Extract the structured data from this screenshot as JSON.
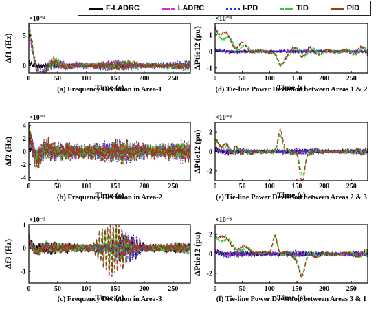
{
  "legend": [
    {
      "name": "F-LADRC",
      "color": "#000000",
      "dash": ""
    },
    {
      "name": "LADRC",
      "color": "#cc33cc",
      "dash": "6,3"
    },
    {
      "name": "I-PD",
      "color": "#1f2fd6",
      "dash": "1.5,2"
    },
    {
      "name": "TID",
      "color": "#33cc33",
      "dash": "6,3"
    },
    {
      "name": "PID",
      "color": "#9a3a1a",
      "dash": "6,3"
    }
  ],
  "chart_data": [
    {
      "id": "a",
      "type": "line",
      "caption": "(a) Frequency Deviation in Area-1",
      "xlabel": "Time (s)",
      "ylabel": "Δf1 (Hz)",
      "scale_label": "×10⁻⁴",
      "xlim": [
        0,
        280
      ],
      "ylim": [
        -1.2,
        7
      ],
      "xticks": [
        0,
        50,
        100,
        150,
        200,
        250
      ],
      "yticks": [
        0,
        5
      ],
      "ytick_labels": [
        "0",
        "5"
      ],
      "series": [
        {
          "name": "F-LADRC",
          "peak": 0.5,
          "amp": 0.5,
          "decay": 10,
          "freq": 0.9,
          "noise": 0.35,
          "seed": 1
        },
        {
          "name": "LADRC",
          "peak": 5.0,
          "amp": 1.0,
          "decay": 14,
          "freq": 0.9,
          "noise": 0.8,
          "seed": 2
        },
        {
          "name": "I-PD",
          "peak": 5.3,
          "amp": 1.2,
          "decay": 16,
          "freq": 0.9,
          "noise": 1.0,
          "seed": 3
        },
        {
          "name": "TID",
          "peak": 6.3,
          "amp": 1.1,
          "decay": 20,
          "freq": 0.9,
          "noise": 0.8,
          "seed": 4
        },
        {
          "name": "PID",
          "peak": 6.6,
          "amp": 1.0,
          "decay": 22,
          "freq": 0.9,
          "noise": 0.8,
          "seed": 5
        }
      ]
    },
    {
      "id": "b",
      "type": "line",
      "caption": "(b) Frequency Deviation in Area-2",
      "xlabel": "Time (s)",
      "ylabel": "Δf2 (Hz)",
      "scale_label": "×10⁻⁴",
      "xlim": [
        0,
        280
      ],
      "ylim": [
        -4.5,
        4.5
      ],
      "xticks": [
        0,
        50,
        100,
        150,
        200,
        250
      ],
      "yticks": [
        -4,
        -2,
        0,
        2,
        4
      ],
      "ytick_labels": [
        "-4",
        "-2",
        "0",
        "2",
        "4"
      ],
      "series": [
        {
          "name": "F-LADRC",
          "peak": 0.5,
          "amp": 0.4,
          "decay": 10,
          "freq": 1.3,
          "noise": 0.3,
          "seed": 11
        },
        {
          "name": "LADRC",
          "peak": 2.0,
          "amp": 1.6,
          "decay": 20,
          "freq": 1.3,
          "noise": 1.7,
          "seed": 12
        },
        {
          "name": "I-PD",
          "peak": 2.5,
          "amp": 2.0,
          "decay": 20,
          "freq": 1.3,
          "noise": 2.2,
          "seed": 13
        },
        {
          "name": "TID",
          "peak": 2.8,
          "amp": 1.8,
          "decay": 20,
          "freq": 1.3,
          "noise": 1.8,
          "seed": 14
        },
        {
          "name": "PID",
          "peak": 3.0,
          "amp": 2.1,
          "decay": 20,
          "freq": 1.3,
          "noise": 2.2,
          "seed": 15
        }
      ]
    },
    {
      "id": "c",
      "type": "line",
      "caption": "(c) Frequency Deviation in Area-3",
      "xlabel": "Time (s)",
      "ylabel": "Δf3 (Hz)",
      "scale_label": "×10⁻³",
      "xlim": [
        0,
        280
      ],
      "ylim": [
        -1.5,
        1
      ],
      "xticks": [
        0,
        50,
        100,
        150,
        200,
        250
      ],
      "yticks": [
        -1,
        0,
        1
      ],
      "ytick_labels": [
        "-1",
        "0",
        "1"
      ],
      "series": [
        {
          "name": "F-LADRC",
          "peak": 0.3,
          "amp": 0.25,
          "decay": 10,
          "freq": 1.4,
          "noise": 0.35,
          "seed": 21,
          "burst": [
            140,
            200,
            0.4
          ]
        },
        {
          "name": "LADRC",
          "peak": 0.3,
          "amp": 0.25,
          "decay": 10,
          "freq": 1.4,
          "noise": 0.3,
          "seed": 22,
          "burst": [
            140,
            200,
            0.5
          ]
        },
        {
          "name": "I-PD",
          "peak": 0.35,
          "amp": 0.25,
          "decay": 10,
          "freq": 1.4,
          "noise": 0.3,
          "seed": 23,
          "burst": [
            140,
            200,
            0.55
          ]
        },
        {
          "name": "TID",
          "peak": 0.5,
          "amp": 0.3,
          "decay": 10,
          "freq": 1.4,
          "noise": 0.3,
          "seed": 24,
          "burst": [
            110,
            180,
            0.8
          ]
        },
        {
          "name": "PID",
          "peak": 0.5,
          "amp": 0.3,
          "decay": 10,
          "freq": 1.4,
          "noise": 0.3,
          "seed": 25,
          "burst": [
            110,
            180,
            1.1
          ]
        }
      ]
    },
    {
      "id": "d",
      "type": "line",
      "caption": "(d) Tie-line Power Deviation between Areas 1 & 2",
      "xlabel": "Time (s)",
      "ylabel": "ΔPtie12 (pu)",
      "scale_label": "×10⁻³",
      "xlim": [
        0,
        280
      ],
      "ylim": [
        -1.3,
        1.7
      ],
      "xticks": [
        0,
        50,
        100,
        150,
        200,
        250
      ],
      "yticks": [
        -1,
        0,
        1
      ],
      "ytick_labels": [
        "-1",
        "0",
        "1"
      ],
      "series": [
        {
          "name": "F-LADRC",
          "peak": 0.05,
          "amp": 0.05,
          "decay": 30,
          "freq": 0.5,
          "noise": 0.06,
          "seed": 31
        },
        {
          "name": "LADRC",
          "peak": 0.1,
          "amp": 0.1,
          "decay": 30,
          "freq": 0.5,
          "noise": 0.08,
          "seed": 32
        },
        {
          "name": "I-PD",
          "peak": 0.12,
          "amp": 0.1,
          "decay": 30,
          "freq": 0.5,
          "noise": 0.1,
          "seed": 33
        },
        {
          "name": "TID",
          "peak": 1.3,
          "amp": 0.5,
          "decay": 40,
          "freq": 0.12,
          "noise": 0.1,
          "seed": 34,
          "dip": [
            120,
            -0.9
          ]
        },
        {
          "name": "PID",
          "peak": 1.55,
          "amp": 0.6,
          "decay": 40,
          "freq": 0.12,
          "noise": 0.1,
          "seed": 35,
          "dip": [
            120,
            -0.8
          ]
        }
      ]
    },
    {
      "id": "e",
      "type": "line",
      "caption": "(e) Tie-line Power Deviation between Areas 2 & 3",
      "xlabel": "Time (s)",
      "ylabel": "ΔPtie12 (pu)",
      "scale_label": "×10⁻³",
      "xlim": [
        0,
        280
      ],
      "ylim": [
        -3,
        3
      ],
      "xticks": [
        0,
        50,
        100,
        150,
        200,
        250
      ],
      "yticks": [
        -2,
        0,
        2
      ],
      "ytick_labels": [
        "-2",
        "0",
        "2"
      ],
      "series": [
        {
          "name": "F-LADRC",
          "peak": 0.2,
          "amp": 0.3,
          "decay": 20,
          "freq": 0.8,
          "noise": 0.2,
          "seed": 41
        },
        {
          "name": "LADRC",
          "peak": 0.25,
          "amp": 0.35,
          "decay": 20,
          "freq": 0.8,
          "noise": 0.25,
          "seed": 42
        },
        {
          "name": "I-PD",
          "peak": 0.3,
          "amp": 0.4,
          "decay": 20,
          "freq": 0.8,
          "noise": 0.3,
          "seed": 43
        },
        {
          "name": "TID",
          "peak": 0.8,
          "amp": 0.6,
          "decay": 40,
          "freq": 0.2,
          "noise": 0.2,
          "seed": 44,
          "dip": [
            160,
            -2.2
          ],
          "spike": [
            120,
            1.7
          ]
        },
        {
          "name": "PID",
          "peak": 1.0,
          "amp": 0.7,
          "decay": 40,
          "freq": 0.2,
          "noise": 0.2,
          "seed": 45,
          "dip": [
            160,
            -2.8
          ],
          "spike": [
            120,
            2.4
          ]
        }
      ]
    },
    {
      "id": "f",
      "type": "line",
      "caption": "(f) Tie-line Power Deviation between Areas 3 & 1",
      "xlabel": "Time (s)",
      "ylabel": "ΔPtie12 (pu)",
      "scale_label": "×10⁻³",
      "xlim": [
        0,
        280
      ],
      "ylim": [
        -3,
        3
      ],
      "xticks": [
        0,
        50,
        100,
        150,
        200,
        250
      ],
      "yticks": [
        -2,
        0,
        2
      ],
      "ytick_labels": [
        "-2",
        "0",
        "2"
      ],
      "series": [
        {
          "name": "F-LADRC",
          "peak": 0.2,
          "amp": 0.3,
          "decay": 20,
          "freq": 0.8,
          "noise": 0.2,
          "seed": 51
        },
        {
          "name": "LADRC",
          "peak": 0.25,
          "amp": 0.35,
          "decay": 20,
          "freq": 0.8,
          "noise": 0.25,
          "seed": 52
        },
        {
          "name": "I-PD",
          "peak": 0.3,
          "amp": 0.4,
          "decay": 20,
          "freq": 0.8,
          "noise": 0.3,
          "seed": 53
        },
        {
          "name": "TID",
          "peak": 1.9,
          "amp": 0.7,
          "decay": 50,
          "freq": 0.1,
          "noise": 0.2,
          "seed": 54,
          "dip": [
            160,
            -1.8
          ],
          "spike": [
            110,
            1.8
          ]
        },
        {
          "name": "PID",
          "peak": 2.1,
          "amp": 0.8,
          "decay": 50,
          "freq": 0.1,
          "noise": 0.2,
          "seed": 55,
          "dip": [
            160,
            -2.4
          ],
          "spike": [
            110,
            2.0
          ]
        }
      ]
    }
  ]
}
